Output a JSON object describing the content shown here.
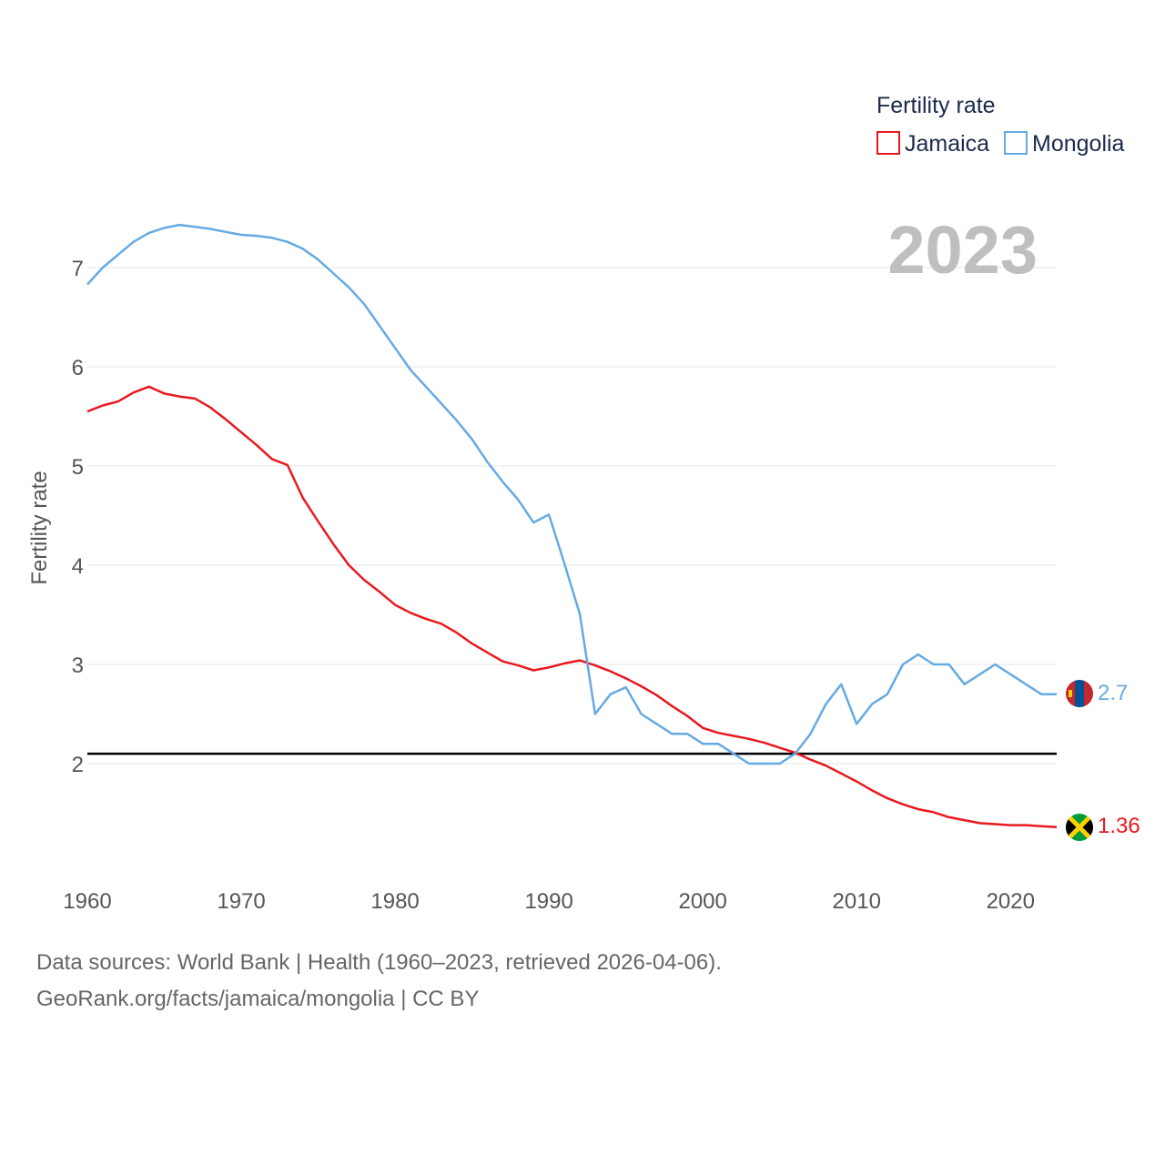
{
  "chart_data": {
    "type": "line",
    "title": "",
    "xlabel": "",
    "ylabel": "Fertility rate",
    "xlim": [
      1960,
      2023
    ],
    "ylim": [
      1,
      7.5
    ],
    "xticks": [
      1960,
      1970,
      1980,
      1990,
      2000,
      2010,
      2020
    ],
    "yticks": [
      2,
      3,
      4,
      5,
      6,
      7
    ],
    "year_label": "2023",
    "legend": {
      "title": "Fertility rate",
      "position": "top-right"
    },
    "reference_line": {
      "y": 2.1,
      "color": "#000000"
    },
    "series": [
      {
        "name": "Jamaica",
        "color": "#e8191e",
        "end_label": "1.36",
        "x": [
          1960,
          1961,
          1962,
          1963,
          1964,
          1965,
          1966,
          1967,
          1968,
          1969,
          1970,
          1971,
          1972,
          1973,
          1974,
          1975,
          1976,
          1977,
          1978,
          1979,
          1980,
          1981,
          1982,
          1983,
          1984,
          1985,
          1986,
          1987,
          1988,
          1989,
          1990,
          1991,
          1992,
          1993,
          1994,
          1995,
          1996,
          1997,
          1998,
          1999,
          2000,
          2001,
          2002,
          2003,
          2004,
          2005,
          2006,
          2007,
          2008,
          2009,
          2010,
          2011,
          2012,
          2013,
          2014,
          2015,
          2016,
          2017,
          2018,
          2019,
          2020,
          2021,
          2022,
          2023
        ],
        "values": [
          5.55,
          5.61,
          5.65,
          5.74,
          5.8,
          5.73,
          5.7,
          5.68,
          5.59,
          5.47,
          5.34,
          5.21,
          5.07,
          5.01,
          4.68,
          4.44,
          4.21,
          4.0,
          3.85,
          3.73,
          3.6,
          3.52,
          3.46,
          3.41,
          3.32,
          3.21,
          3.12,
          3.03,
          2.99,
          2.94,
          2.97,
          3.01,
          3.04,
          2.99,
          2.93,
          2.86,
          2.78,
          2.69,
          2.58,
          2.48,
          2.36,
          2.31,
          2.28,
          2.25,
          2.21,
          2.16,
          2.11,
          2.04,
          1.98,
          1.9,
          1.82,
          1.73,
          1.65,
          1.59,
          1.54,
          1.51,
          1.46,
          1.43,
          1.4,
          1.39,
          1.38,
          1.38,
          1.37,
          1.36
        ]
      },
      {
        "name": "Mongolia",
        "color": "#66aae2",
        "end_label": "2.7",
        "x": [
          1960,
          1961,
          1962,
          1963,
          1964,
          1965,
          1966,
          1967,
          1968,
          1969,
          1970,
          1971,
          1972,
          1973,
          1974,
          1975,
          1976,
          1977,
          1978,
          1979,
          1980,
          1981,
          1982,
          1983,
          1984,
          1985,
          1986,
          1987,
          1988,
          1989,
          1990,
          1991,
          1992,
          1993,
          1994,
          1995,
          1996,
          1997,
          1998,
          1999,
          2000,
          2001,
          2002,
          2003,
          2004,
          2005,
          2006,
          2007,
          2008,
          2009,
          2010,
          2011,
          2012,
          2013,
          2014,
          2015,
          2016,
          2017,
          2018,
          2019,
          2020,
          2021,
          2022,
          2023
        ],
        "values": [
          6.83,
          7.0,
          7.13,
          7.26,
          7.35,
          7.4,
          7.43,
          7.41,
          7.39,
          7.36,
          7.33,
          7.32,
          7.3,
          7.26,
          7.19,
          7.08,
          6.94,
          6.8,
          6.63,
          6.41,
          6.19,
          5.97,
          5.8,
          5.63,
          5.46,
          5.27,
          5.04,
          4.84,
          4.66,
          4.43,
          4.51,
          4.02,
          3.51,
          2.5,
          2.7,
          2.77,
          2.5,
          2.4,
          2.3,
          2.3,
          2.2,
          2.2,
          2.1,
          2.0,
          2.0,
          2.0,
          2.1,
          2.3,
          2.6,
          2.8,
          2.4,
          2.6,
          2.7,
          3.0,
          3.1,
          3.0,
          3.0,
          2.8,
          2.9,
          3.0,
          2.9,
          2.8,
          2.7,
          2.7
        ]
      }
    ]
  },
  "footer": {
    "line1": "Data sources: World Bank | Health (1960–2023, retrieved 2026-04-06).",
    "line2": "GeoRank.org/facts/jamaica/mongolia | CC BY"
  }
}
